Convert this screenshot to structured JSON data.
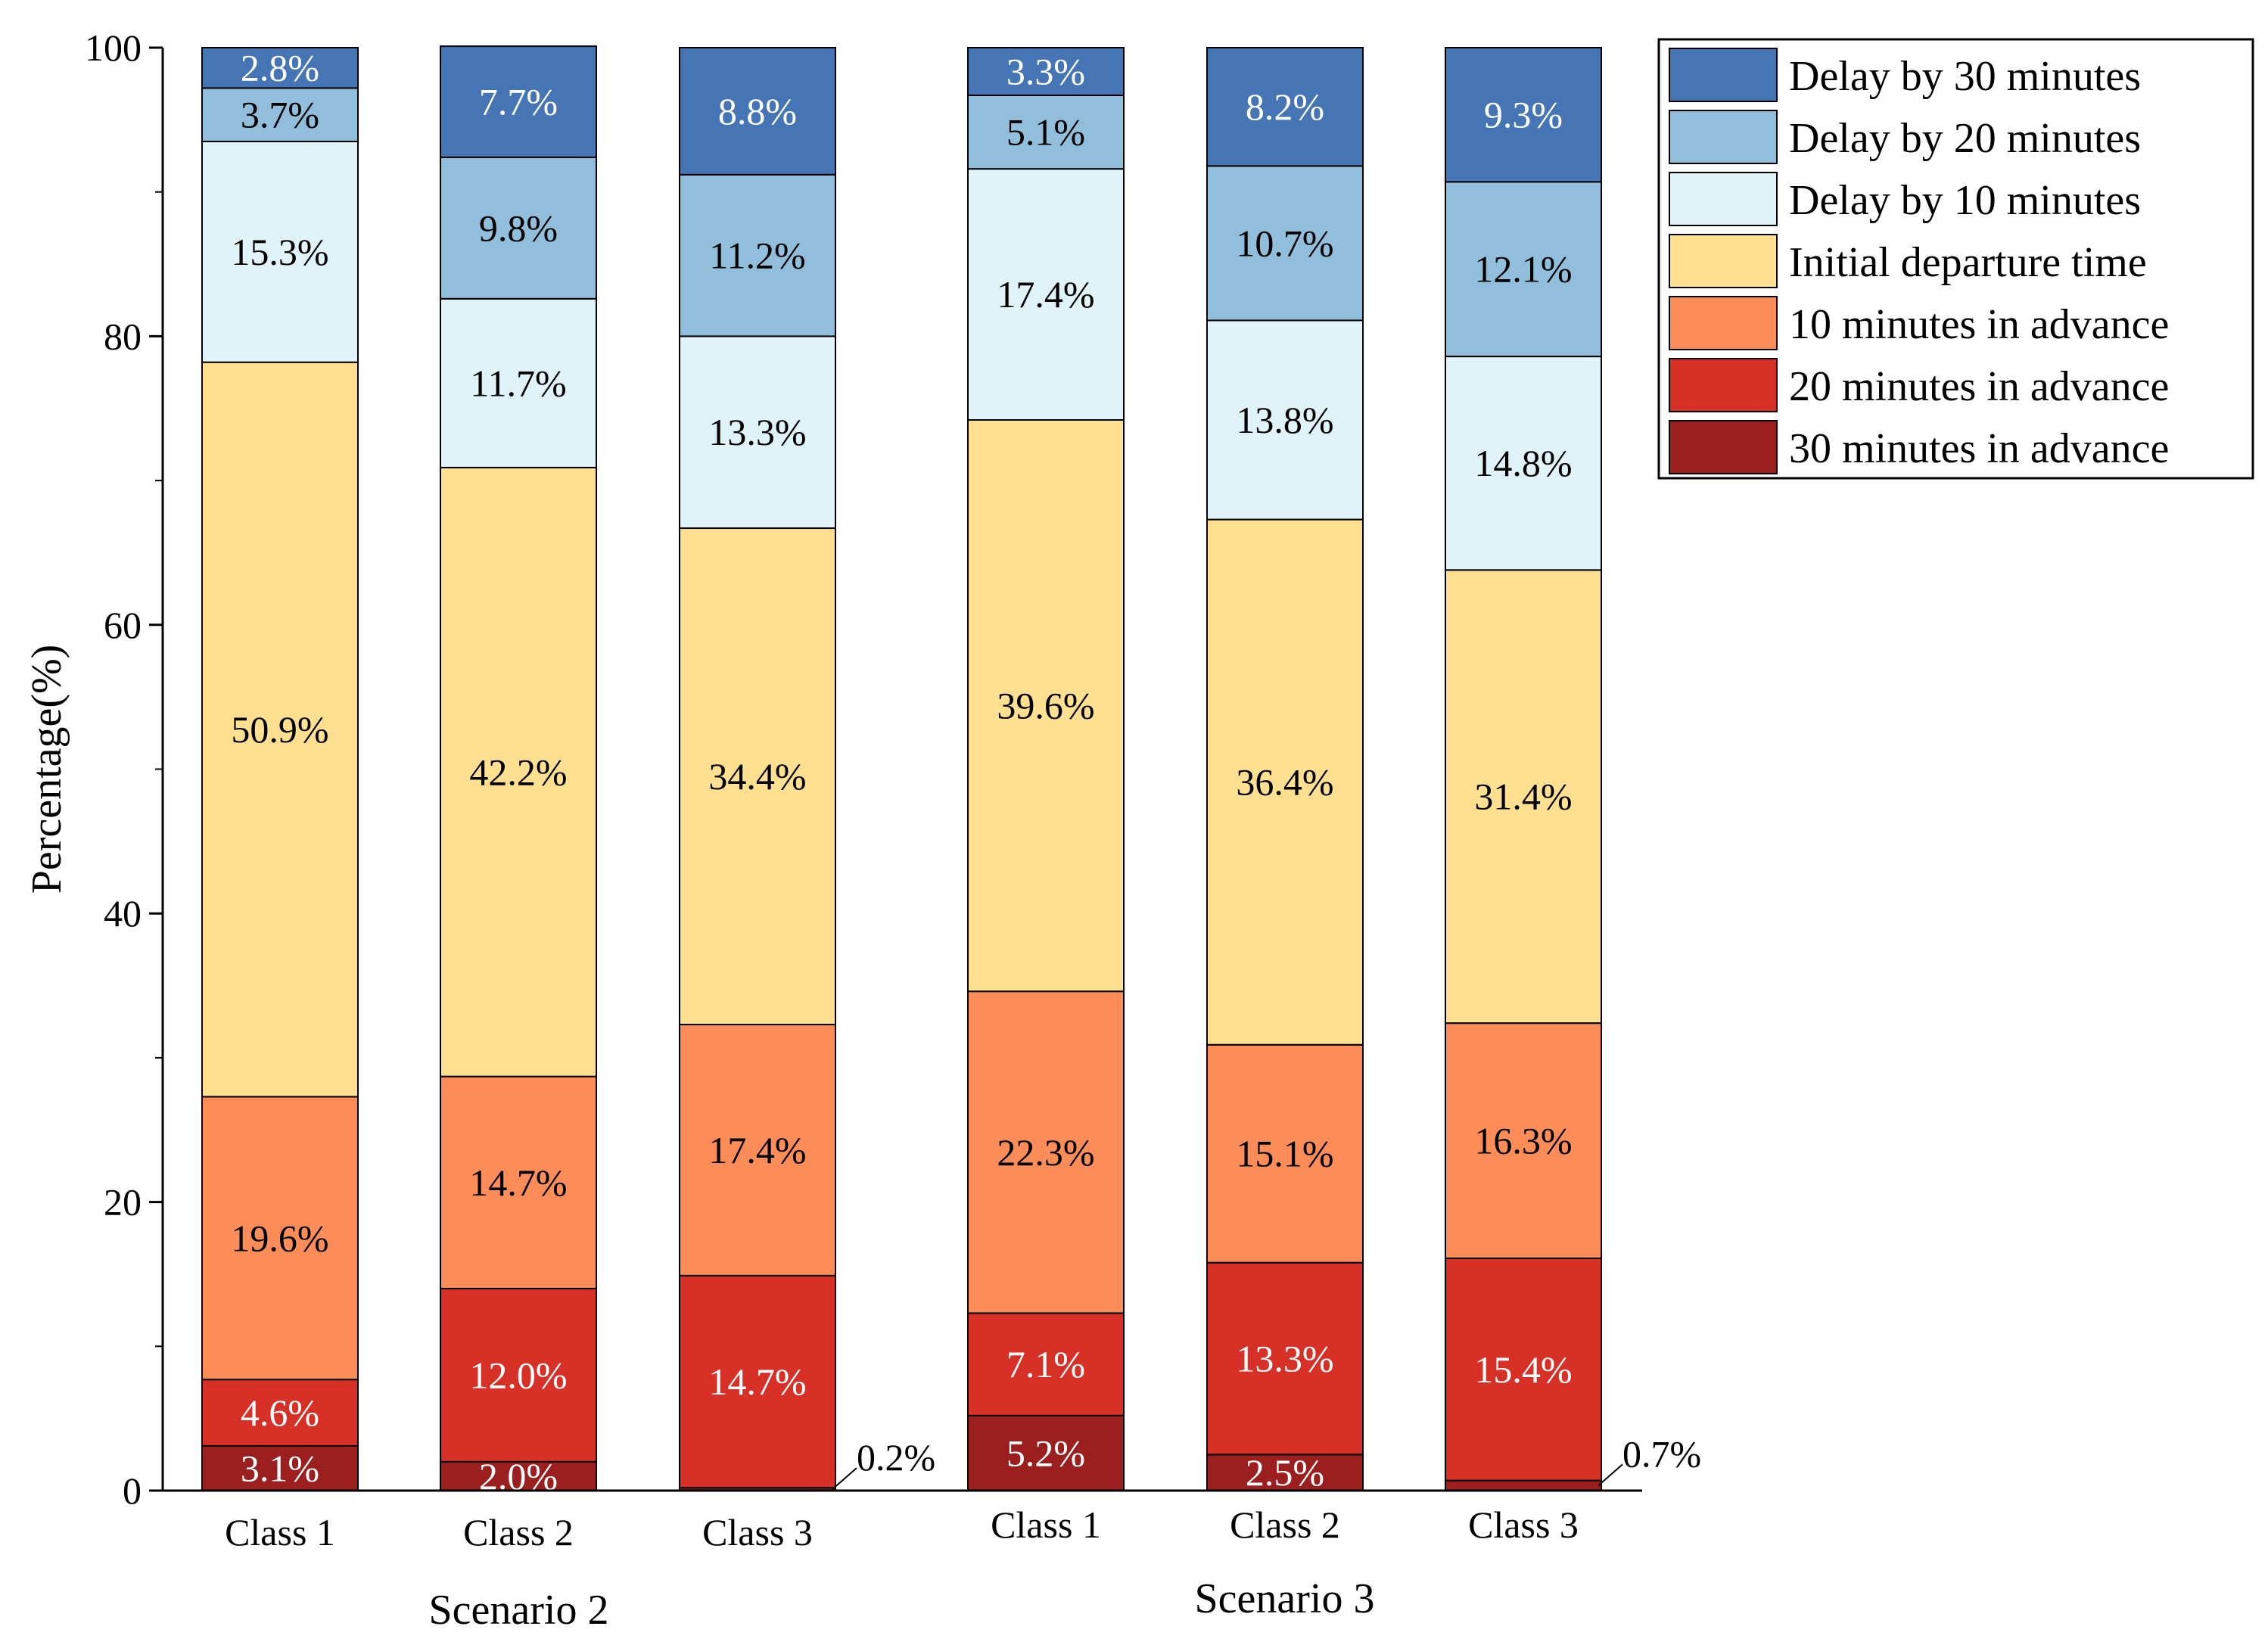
{
  "chart_data": {
    "type": "bar",
    "stacked": true,
    "ylabel": "Percentage(%)",
    "ylim": [
      0,
      100
    ],
    "yticks": [
      "0",
      "20",
      "40",
      "60",
      "80",
      "100"
    ],
    "legend_position": "top-right",
    "groups": [
      {
        "name": "Scenario 2",
        "categories": [
          "Class 1",
          "Class 2",
          "Class 3"
        ]
      },
      {
        "name": "Scenario 3",
        "categories": [
          "Class 1",
          "Class 2",
          "Class 3"
        ]
      }
    ],
    "series": [
      {
        "name": "30 minutes in advance",
        "color": "#9b1f1f",
        "label_color": "#ffffff",
        "values": [
          3.1,
          2.0,
          0.2,
          5.2,
          2.5,
          0.7
        ],
        "labels": [
          "3.1%",
          "2.0%",
          "0.2%",
          "5.2%",
          "2.5%",
          "0.7%"
        ]
      },
      {
        "name": "20 minutes in advance",
        "color": "#d73027",
        "label_color": "#ffffff",
        "values": [
          4.6,
          12.0,
          14.7,
          7.1,
          13.3,
          15.4
        ],
        "labels": [
          "4.6%",
          "12.0%",
          "14.7%",
          "7.1%",
          "13.3%",
          "15.4%"
        ]
      },
      {
        "name": "10 minutes in advance",
        "color": "#fc8d59",
        "label_color": "#000000",
        "values": [
          19.6,
          14.7,
          17.4,
          22.3,
          15.1,
          16.3
        ],
        "labels": [
          "19.6%",
          "14.7%",
          "17.4%",
          "22.3%",
          "15.1%",
          "16.3%"
        ]
      },
      {
        "name": "Initial departure time",
        "color": "#fee090",
        "label_color": "#000000",
        "values": [
          50.9,
          42.2,
          34.4,
          39.6,
          36.4,
          31.4
        ],
        "labels": [
          "50.9%",
          "42.2%",
          "34.4%",
          "39.6%",
          "36.4%",
          "31.4%"
        ]
      },
      {
        "name": "Delay by 10 minutes",
        "color": "#e0f3f8",
        "label_color": "#000000",
        "values": [
          15.3,
          11.7,
          13.3,
          17.4,
          13.8,
          14.8
        ],
        "labels": [
          "15.3%",
          "11.7%",
          "13.3%",
          "17.4%",
          "13.8%",
          "14.8%"
        ]
      },
      {
        "name": "Delay by 20 minutes",
        "color": "#91bfdb",
        "label_color": "#000000",
        "values": [
          3.7,
          9.8,
          11.2,
          5.1,
          10.7,
          12.1
        ],
        "labels": [
          "3.7%",
          "9.8%",
          "11.2%",
          "5.1%",
          "10.7%",
          "12.1%"
        ]
      },
      {
        "name": "Delay by 30 minutes",
        "color": "#4575b4",
        "label_color": "#ffffff",
        "values": [
          2.8,
          7.7,
          8.8,
          3.3,
          8.2,
          9.3
        ],
        "labels": [
          "2.8%",
          "7.7%",
          "8.8%",
          "3.3%",
          "8.2%",
          "9.3%"
        ]
      }
    ],
    "legend_order": [
      "Delay by 30 minutes",
      "Delay by 20 minutes",
      "Delay by 10 minutes",
      "Initial departure time",
      "10 minutes in advance",
      "20 minutes in advance",
      "30 minutes in advance"
    ],
    "callouts": [
      {
        "bar_index": 2,
        "series": "30 minutes in advance",
        "text": "0.2%"
      },
      {
        "bar_index": 5,
        "series": "30 minutes in advance",
        "text": "0.7%"
      }
    ]
  }
}
